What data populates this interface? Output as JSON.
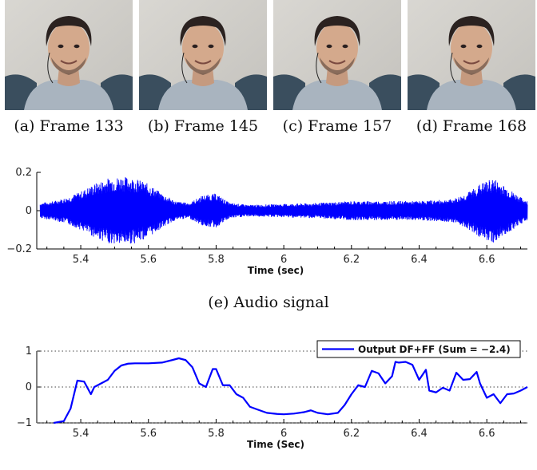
{
  "figure": {
    "frames": [
      {
        "caption": "(a) Frame 133"
      },
      {
        "caption": "(b) Frame 145"
      },
      {
        "caption": "(c) Frame 157"
      },
      {
        "caption": "(d) Frame 168"
      }
    ],
    "audio_caption": "(e) Audio signal"
  },
  "chart_data": [
    {
      "type": "line",
      "title": "",
      "xlabel": "Time (sec)",
      "ylabel": "",
      "xlim": [
        5.27,
        6.72
      ],
      "ylim": [
        -0.2,
        0.2
      ],
      "x_ticks": [
        "5.4",
        "5.6",
        "5.8",
        "6",
        "6.2",
        "6.4",
        "6.6"
      ],
      "y_ticks": [
        "−0.2",
        "0",
        "0.2"
      ],
      "grid": false,
      "legend": "none",
      "color": "#0000ff",
      "series": [
        {
          "envelope_x": [
            5.28,
            5.32,
            5.36,
            5.4,
            5.44,
            5.48,
            5.52,
            5.56,
            5.6,
            5.64,
            5.68,
            5.72,
            5.76,
            5.8,
            5.84,
            5.9,
            6.0,
            6.1,
            6.2,
            6.3,
            6.4,
            6.5,
            6.54,
            6.58,
            6.62,
            6.66,
            6.7,
            6.72
          ],
          "envelope_amplitude": [
            0.04,
            0.05,
            0.07,
            0.1,
            0.14,
            0.17,
            0.18,
            0.17,
            0.14,
            0.09,
            0.05,
            0.04,
            0.08,
            0.09,
            0.04,
            0.03,
            0.035,
            0.04,
            0.05,
            0.05,
            0.05,
            0.06,
            0.09,
            0.14,
            0.17,
            0.12,
            0.07,
            0.05
          ]
        }
      ]
    },
    {
      "type": "line",
      "title": "",
      "xlabel": "Time (Sec)",
      "ylabel": "",
      "xlim": [
        5.27,
        6.72
      ],
      "ylim": [
        -1,
        1
      ],
      "x_ticks": [
        "5.4",
        "5.6",
        "5.8",
        "6",
        "6.2",
        "6.4",
        "6.6"
      ],
      "y_ticks": [
        "−1",
        "0",
        "1"
      ],
      "grid": "dotted horizontal at -1, 0, 1",
      "legend": "top-right",
      "series": [
        {
          "name": "Output DF+FF (Sum = −2.4)",
          "color": "#0000ff",
          "x": [
            5.32,
            5.35,
            5.37,
            5.39,
            5.41,
            5.43,
            5.44,
            5.46,
            5.48,
            5.5,
            5.52,
            5.54,
            5.56,
            5.6,
            5.64,
            5.67,
            5.69,
            5.71,
            5.73,
            5.75,
            5.77,
            5.79,
            5.8,
            5.82,
            5.84,
            5.86,
            5.88,
            5.9,
            5.92,
            5.95,
            5.98,
            6.0,
            6.03,
            6.06,
            6.08,
            6.1,
            6.13,
            6.16,
            6.18,
            6.2,
            6.22,
            6.24,
            6.26,
            6.28,
            6.3,
            6.32,
            6.33,
            6.34,
            6.36,
            6.38,
            6.4,
            6.42,
            6.43,
            6.45,
            6.47,
            6.49,
            6.51,
            6.53,
            6.55,
            6.57,
            6.58,
            6.6,
            6.62,
            6.64,
            6.66,
            6.68,
            6.7,
            6.72
          ],
          "y": [
            -1.0,
            -0.95,
            -0.6,
            0.18,
            0.15,
            -0.2,
            0.0,
            0.1,
            0.2,
            0.45,
            0.6,
            0.65,
            0.66,
            0.66,
            0.68,
            0.75,
            0.8,
            0.75,
            0.55,
            0.1,
            0.0,
            0.5,
            0.5,
            0.05,
            0.05,
            -0.2,
            -0.3,
            -0.55,
            -0.62,
            -0.72,
            -0.75,
            -0.76,
            -0.74,
            -0.7,
            -0.65,
            -0.72,
            -0.76,
            -0.72,
            -0.5,
            -0.2,
            0.05,
            0.0,
            0.45,
            0.38,
            0.1,
            0.3,
            0.7,
            0.68,
            0.7,
            0.62,
            0.2,
            0.48,
            -0.1,
            -0.15,
            -0.02,
            -0.1,
            0.4,
            0.2,
            0.22,
            0.42,
            0.1,
            -0.3,
            -0.2,
            -0.45,
            -0.2,
            -0.18,
            -0.1,
            0.0
          ]
        }
      ]
    }
  ]
}
